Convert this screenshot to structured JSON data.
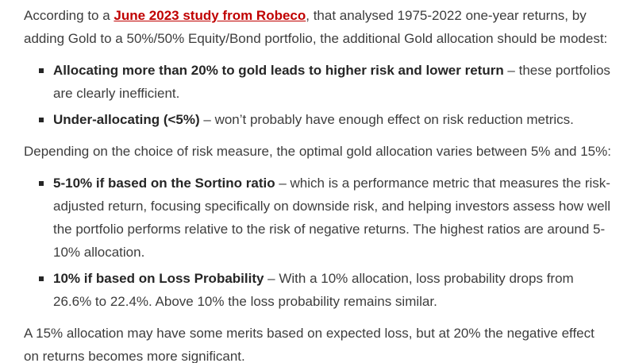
{
  "colors": {
    "text": "#3d3d3d",
    "bold_text": "#262626",
    "link": "#c00000",
    "background": "#ffffff"
  },
  "intro": {
    "prefix": "According to a ",
    "link": "June 2023 study from Robeco",
    "suffix": ", that analysed 1975-2022 one-year returns, by adding Gold to a 50%/50% Equity/Bond portfolio, the additional Gold allocation should be modest:"
  },
  "list1": [
    {
      "bold": "Allocating more than 20% to gold leads to higher risk and lower return",
      "rest": " –  these portfolios are clearly inefficient."
    },
    {
      "bold": "Under-allocating (<5%)",
      "rest": " – won’t probably have enough effect on risk reduction metrics."
    }
  ],
  "middle_paragraph": "Depending on the choice of risk measure, the optimal gold allocation varies between 5% and 15%:",
  "list2": [
    {
      "bold": "5-10% if based on the Sortino ratio",
      "rest": " – which is a performance metric that measures the risk-adjusted return, focusing specifically on downside risk, and helping investors assess how well the portfolio performs relative to the risk of negative returns. The highest ratios are around 5-10% allocation."
    },
    {
      "bold": "10% if based on Loss Probability",
      "rest": " – With a 10% allocation, loss probability drops from 26.6% to 22.4%. Above 10% the loss probability remains similar."
    }
  ],
  "closing_paragraph": "A 15% allocation may have some merits based on expected loss, but at 20% the negative effect on returns becomes more significant."
}
